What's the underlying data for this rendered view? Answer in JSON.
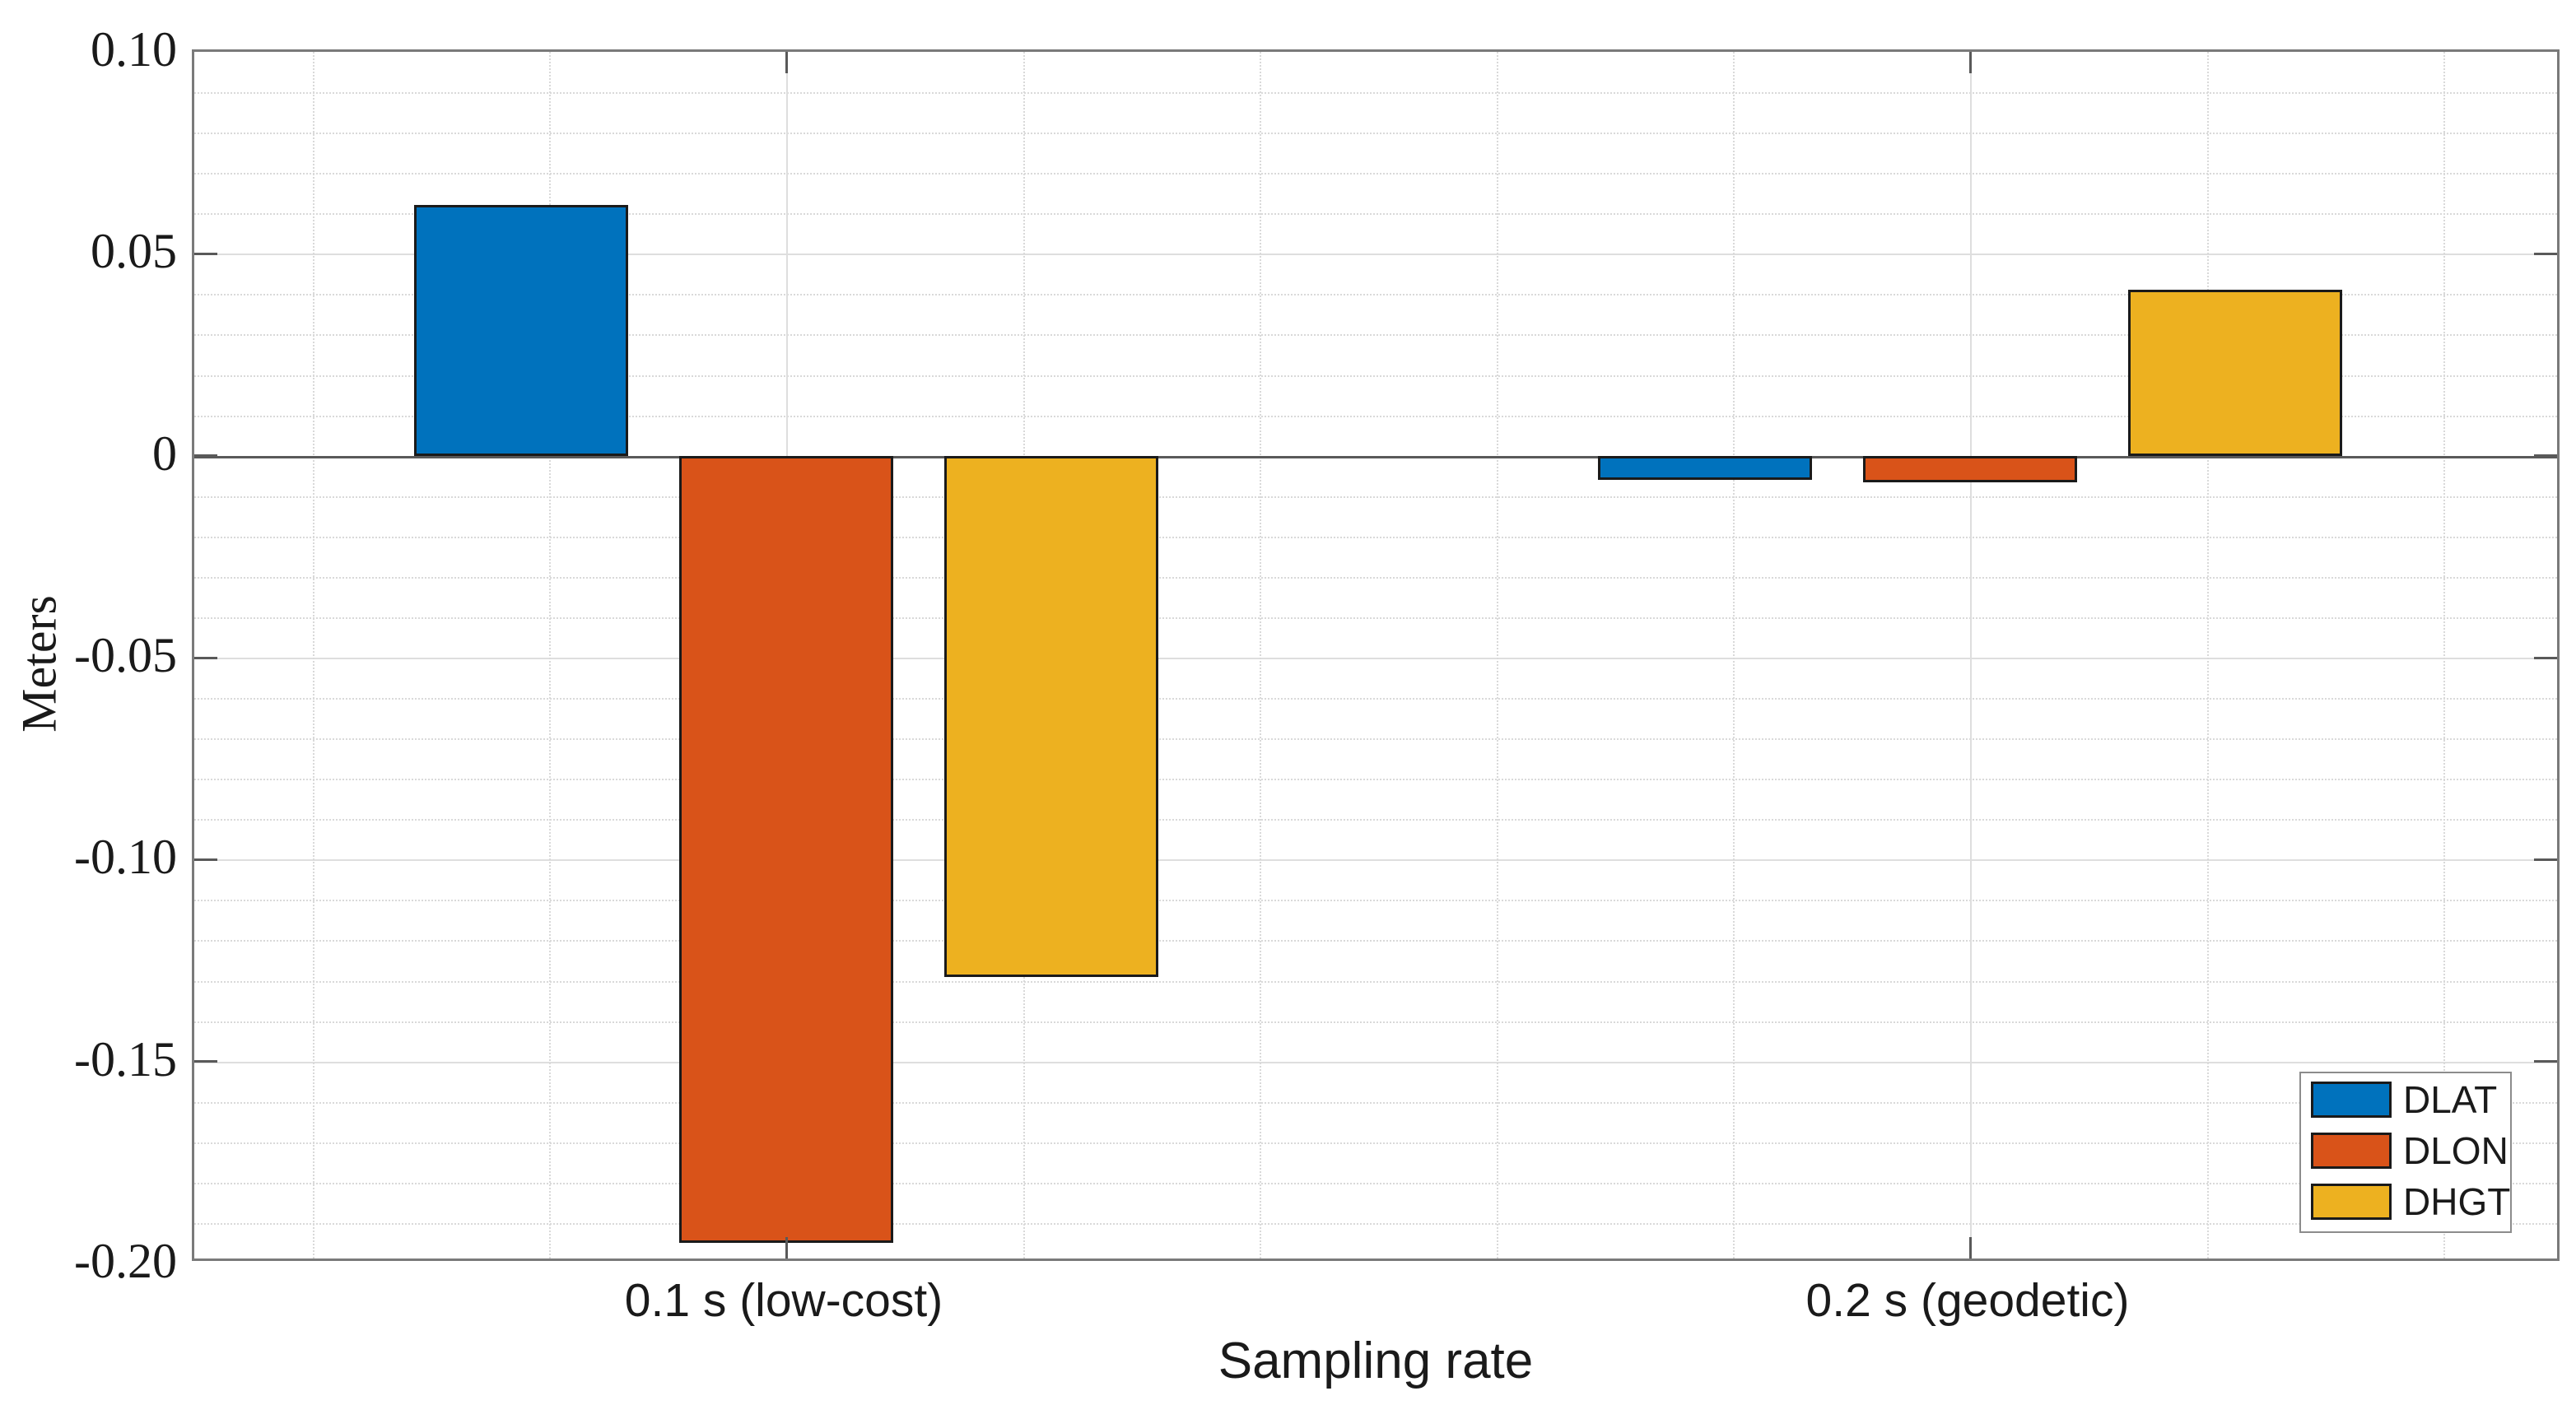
{
  "chart_data": {
    "type": "bar",
    "title": "",
    "xlabel": "Sampling rate",
    "ylabel": "Meters",
    "categories": [
      "0.1 s (low-cost)",
      "0.2 s (geodetic)"
    ],
    "series": [
      {
        "name": "DLAT",
        "color": "#0072BD",
        "values": [
          0.062,
          -0.006
        ]
      },
      {
        "name": "DLON",
        "color": "#D95319",
        "values": [
          -0.195,
          -0.0065
        ]
      },
      {
        "name": "DHGT",
        "color": "#EDB120",
        "values": [
          -0.129,
          0.041
        ]
      }
    ],
    "ylim": [
      -0.2,
      0.1
    ],
    "ytick_step": 0.05,
    "ytick_labels": [
      "0.10",
      "0.05",
      "0",
      "-0.05",
      "-0.10",
      "-0.15",
      "-0.20"
    ],
    "yminor_step": 0.01,
    "grid": "on",
    "minor_grid": "on",
    "legend_position": "bottom-right",
    "legend_entries": [
      "DLAT",
      "DLON",
      "DHGT"
    ],
    "bar_edge_color": "#1a1a1a",
    "axis_color": "#595959"
  }
}
